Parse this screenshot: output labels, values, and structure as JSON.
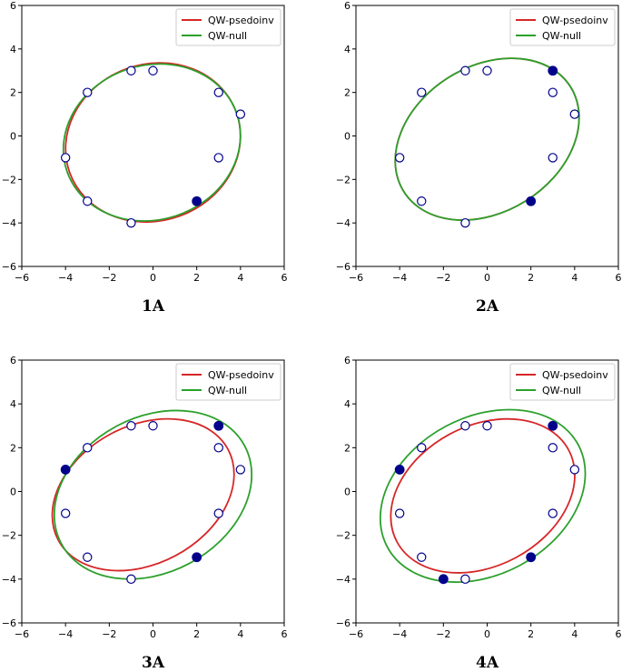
{
  "colors": {
    "psedoinv": "#d62728",
    "null": "#2ca02c",
    "marker": "#00008b",
    "axis": "#000000"
  },
  "chart_data": [
    {
      "type": "scatter",
      "label": "1A",
      "xlim": [
        -6,
        6
      ],
      "ylim": [
        -6,
        6
      ],
      "xticks": [
        -6,
        -4,
        -2,
        0,
        2,
        4,
        6
      ],
      "yticks": [
        -6,
        -4,
        -2,
        0,
        2,
        4,
        6
      ],
      "grid": false,
      "legend_position": "top-right",
      "legend": [
        "QW-psedoinv",
        "QW-null"
      ],
      "points_open": [
        [
          -4,
          -1
        ],
        [
          -3,
          2
        ],
        [
          -3,
          -3
        ],
        [
          -1,
          3
        ],
        [
          0,
          3
        ],
        [
          3,
          2
        ],
        [
          4,
          1
        ],
        [
          3,
          -1
        ],
        [
          -1,
          -4
        ]
      ],
      "points_filled": [
        [
          2,
          -3
        ]
      ],
      "series": [
        {
          "name": "QW-psedoinv",
          "ellipse": {
            "cx": 0.0,
            "cy": -0.3,
            "rx": 4.05,
            "ry": 3.6,
            "angle": 20
          }
        },
        {
          "name": "QW-null",
          "ellipse": {
            "cx": -0.05,
            "cy": -0.3,
            "rx": 4.1,
            "ry": 3.55,
            "angle": 18
          }
        }
      ]
    },
    {
      "type": "scatter",
      "label": "2A",
      "xlim": [
        -6,
        6
      ],
      "ylim": [
        -6,
        6
      ],
      "xticks": [
        -6,
        -4,
        -2,
        0,
        2,
        4,
        6
      ],
      "yticks": [
        -6,
        -4,
        -2,
        0,
        2,
        4,
        6
      ],
      "grid": false,
      "legend_position": "top-right",
      "legend": [
        "QW-psedoinv",
        "QW-null"
      ],
      "points_open": [
        [
          -4,
          -1
        ],
        [
          -3,
          2
        ],
        [
          -3,
          -3
        ],
        [
          -1,
          3
        ],
        [
          0,
          3
        ],
        [
          3,
          2
        ],
        [
          4,
          1
        ],
        [
          3,
          -1
        ],
        [
          -1,
          -4
        ]
      ],
      "points_filled": [
        [
          3,
          3
        ],
        [
          2,
          -3
        ]
      ],
      "series": [
        {
          "name": "QW-psedoinv",
          "ellipse": {
            "cx": 0.0,
            "cy": -0.15,
            "rx": 4.5,
            "ry": 3.35,
            "angle": 32
          }
        },
        {
          "name": "QW-null",
          "ellipse": {
            "cx": 0.0,
            "cy": -0.15,
            "rx": 4.5,
            "ry": 3.35,
            "angle": 32
          }
        }
      ]
    },
    {
      "type": "scatter",
      "label": "3A",
      "xlim": [
        -6,
        6
      ],
      "ylim": [
        -6,
        6
      ],
      "xticks": [
        -6,
        -4,
        -2,
        0,
        2,
        4,
        6
      ],
      "yticks": [
        -6,
        -4,
        -2,
        0,
        2,
        4,
        6
      ],
      "grid": false,
      "legend_position": "top-right",
      "legend": [
        "QW-psedoinv",
        "QW-null"
      ],
      "points_open": [
        [
          -4,
          -1
        ],
        [
          -3,
          2
        ],
        [
          -3,
          -3
        ],
        [
          -1,
          3
        ],
        [
          0,
          3
        ],
        [
          3,
          2
        ],
        [
          4,
          1
        ],
        [
          3,
          -1
        ],
        [
          -1,
          -4
        ]
      ],
      "points_filled": [
        [
          -4,
          1
        ],
        [
          3,
          3
        ],
        [
          2,
          -3
        ]
      ],
      "series": [
        {
          "name": "QW-psedoinv",
          "ellipse": {
            "cx": -0.45,
            "cy": -0.15,
            "rx": 4.4,
            "ry": 3.15,
            "angle": 28
          }
        },
        {
          "name": "QW-null",
          "ellipse": {
            "cx": 0.0,
            "cy": -0.15,
            "rx": 4.75,
            "ry": 3.55,
            "angle": 28
          }
        }
      ]
    },
    {
      "type": "scatter",
      "label": "4A",
      "xlim": [
        -6,
        6
      ],
      "ylim": [
        -6,
        6
      ],
      "xticks": [
        -6,
        -4,
        -2,
        0,
        2,
        4,
        6
      ],
      "yticks": [
        -6,
        -4,
        -2,
        0,
        2,
        4,
        6
      ],
      "grid": false,
      "legend_position": "top-right",
      "legend": [
        "QW-psedoinv",
        "QW-null"
      ],
      "points_open": [
        [
          -4,
          -1
        ],
        [
          -3,
          2
        ],
        [
          -3,
          -3
        ],
        [
          -1,
          3
        ],
        [
          0,
          3
        ],
        [
          3,
          2
        ],
        [
          4,
          1
        ],
        [
          3,
          -1
        ],
        [
          -1,
          -4
        ]
      ],
      "points_filled": [
        [
          -4,
          1
        ],
        [
          3,
          3
        ],
        [
          2,
          -3
        ],
        [
          -2,
          -4
        ]
      ],
      "series": [
        {
          "name": "QW-psedoinv",
          "ellipse": {
            "cx": -0.2,
            "cy": -0.2,
            "rx": 4.45,
            "ry": 3.2,
            "angle": 28
          }
        },
        {
          "name": "QW-null",
          "ellipse": {
            "cx": -0.2,
            "cy": -0.2,
            "rx": 4.95,
            "ry": 3.6,
            "angle": 28
          }
        }
      ]
    }
  ]
}
